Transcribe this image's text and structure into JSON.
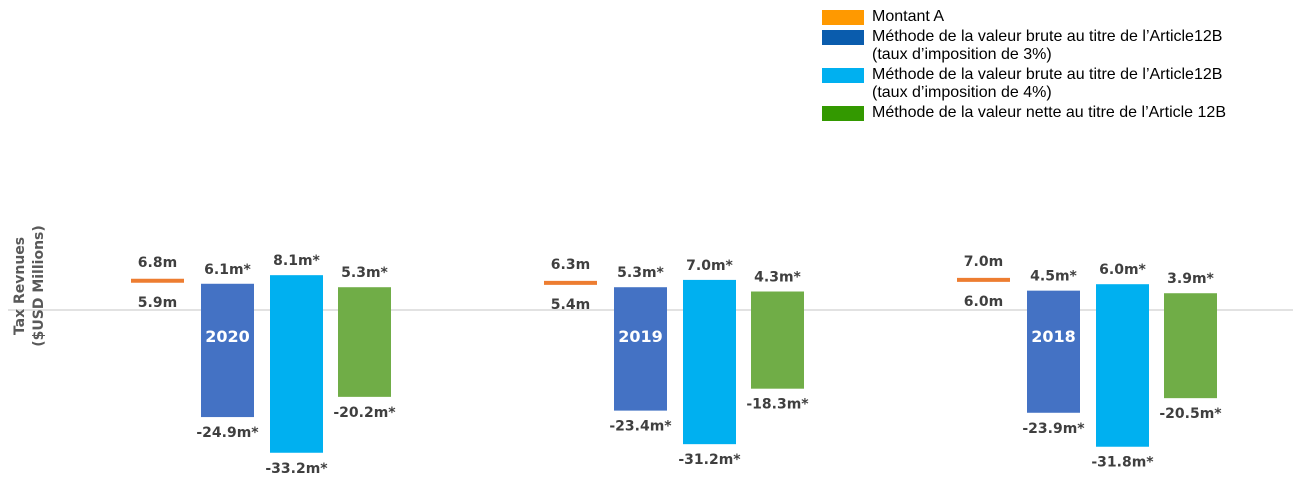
{
  "legend": [
    {
      "label": "Montant A",
      "color": "#ff9900"
    },
    {
      "label": "Méthode de la valeur brute au titre de l’Article12B (taux d’imposition de 3%)",
      "color": "#0a5cad"
    },
    {
      "label": "Méthode de la valeur brute au titre de l’Article12B (taux d’imposition de 4%)",
      "color": "#00b0f0"
    },
    {
      "label": "Méthode de la valeur nette au titre de l’Article 12B",
      "color": "#339900"
    }
  ],
  "chart_data": {
    "type": "bar",
    "ylabel": "Tax Revnues ($USD Millions)",
    "ylabel_lines": [
      "Tax Revnues",
      "($USD Millions)"
    ],
    "categories": [
      "2020",
      "2019",
      "2018"
    ],
    "colors": {
      "amount_a": "#ed7d31",
      "series": [
        "#4472c4",
        "#00b0f0",
        "#70ad47"
      ]
    },
    "amount_a": [
      {
        "high": 6.8,
        "high_label": "6.8m",
        "low": 5.9,
        "low_label": "5.9m"
      },
      {
        "high": 6.3,
        "high_label": "6.3m",
        "low": 5.4,
        "low_label": "5.4m"
      },
      {
        "high": 7.0,
        "high_label": "7.0m",
        "low": 6.0,
        "low_label": "6.0m"
      }
    ],
    "series": [
      {
        "values": [
          [
            6.1,
            -24.9
          ],
          [
            5.3,
            -23.4
          ],
          [
            4.5,
            -23.9
          ]
        ],
        "labels": [
          [
            "6.1m*",
            "-24.9m*"
          ],
          [
            "5.3m*",
            "-23.4m*"
          ],
          [
            "4.5m*",
            "-23.9m*"
          ]
        ]
      },
      {
        "values": [
          [
            8.1,
            -33.2
          ],
          [
            7.0,
            -31.2
          ],
          [
            6.0,
            -31.8
          ]
        ],
        "labels": [
          [
            "8.1m*",
            "-33.2m*"
          ],
          [
            "7.0m*",
            "-31.2m*"
          ],
          [
            "6.0m*",
            "-31.8m*"
          ]
        ]
      },
      {
        "values": [
          [
            5.3,
            -20.2
          ],
          [
            4.3,
            -18.3
          ],
          [
            3.9,
            -20.5
          ]
        ],
        "labels": [
          [
            "5.3m*",
            "-20.2m*"
          ],
          [
            "4.3m*",
            "-18.3m*"
          ],
          [
            "3.9m*",
            "-20.5m*"
          ]
        ]
      }
    ]
  }
}
